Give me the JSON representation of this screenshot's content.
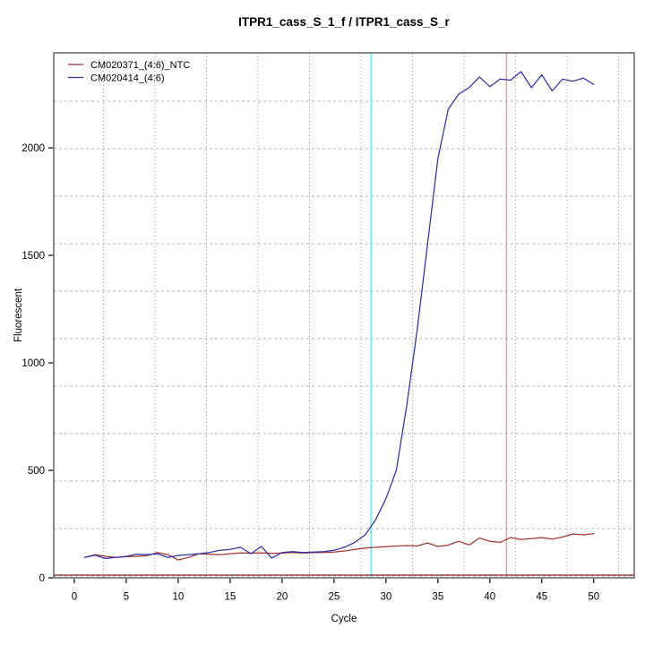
{
  "title": "ITPR1_cass_S_1_f / ITPR1_cass_S_r",
  "chart_data": {
    "type": "line",
    "title": "ITPR1_cass_S_1_f / ITPR1_cass_S_r",
    "xlabel": "Cycle",
    "ylabel": "Fluorescent",
    "x_ticks": [
      0,
      5,
      10,
      15,
      20,
      25,
      30,
      35,
      40,
      45,
      50
    ],
    "y_ticks": [
      0,
      500,
      1000,
      1500,
      2000
    ],
    "xlim": [
      -1.98,
      53.9
    ],
    "ylim": [
      0,
      2442
    ],
    "grid": {
      "v_lines_x": [
        2.8,
        7.76,
        12.72,
        17.68,
        22.64,
        27.6,
        32.56,
        37.52,
        42.48,
        47.44,
        52.4
      ],
      "h_lines_y": [
        8,
        229,
        450,
        671,
        892,
        1113,
        1333,
        1554,
        1775,
        1996,
        2217
      ],
      "v_color": "#969696",
      "h_color": "#b4b4b4"
    },
    "x": [
      1,
      2,
      3,
      4,
      5,
      6,
      7,
      8,
      9,
      10,
      11,
      12,
      13,
      14,
      15,
      16,
      17,
      18,
      19,
      20,
      21,
      22,
      23,
      24,
      25,
      26,
      27,
      28,
      29,
      30,
      31,
      32,
      33,
      34,
      35,
      36,
      37,
      38,
      39,
      40,
      41,
      42,
      43,
      44,
      45,
      46,
      47,
      48,
      49,
      50
    ],
    "series": [
      {
        "name": "CM020371_(4:6)_NTC",
        "color": "#A03438",
        "values": [
          95,
          108,
          100,
          95,
          98,
          100,
          103,
          118,
          108,
          83,
          95,
          112,
          110,
          107,
          112,
          116,
          115,
          116,
          114,
          115,
          118,
          115,
          117,
          118,
          120,
          125,
          132,
          138,
          142,
          145,
          148,
          150,
          148,
          162,
          146,
          152,
          170,
          153,
          185,
          170,
          165,
          187,
          178,
          182,
          187,
          180,
          190,
          204,
          200,
          205
        ]
      },
      {
        "name": "CM020414_(4:6)",
        "color": "#3030A0",
        "values": [
          95,
          105,
          90,
          95,
          100,
          110,
          108,
          112,
          95,
          104,
          108,
          112,
          118,
          128,
          132,
          142,
          112,
          146,
          92,
          118,
          122,
          118,
          120,
          122,
          128,
          142,
          165,
          200,
          270,
          368,
          500,
          800,
          1150,
          1550,
          1950,
          2180,
          2250,
          2280,
          2330,
          2285,
          2320,
          2315,
          2355,
          2280,
          2340,
          2265,
          2320,
          2310,
          2325,
          2295
        ]
      }
    ],
    "annotations": {
      "v_lines": [
        {
          "x": 28.56,
          "color": "#7DF2F2",
          "width": 2,
          "name": "cyan-cycle-marker"
        },
        {
          "x": 41.6,
          "color": "#F0A4A4",
          "width": 1.6,
          "name": "red-cycle-marker"
        }
      ],
      "h_lines": [
        {
          "y": 12.5,
          "color": "#8B2323",
          "width": 1.3,
          "name": "threshold-line"
        }
      ]
    },
    "legend": {
      "position": "top-left",
      "entries": [
        "CM020371_(4:6)_NTC",
        "CM020414_(4:6)"
      ]
    },
    "box_color": "#4a4a4a",
    "background": "#ffffff"
  }
}
